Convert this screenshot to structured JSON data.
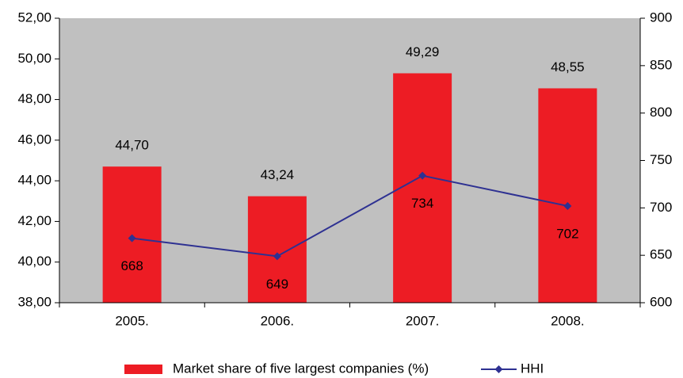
{
  "chart_data": {
    "type": "bar",
    "categories": [
      "2005.",
      "2006.",
      "2007.",
      "2008."
    ],
    "series": [
      {
        "name": "Market share of five largest companies (%)",
        "type": "bar",
        "color": "#ed1c24",
        "values": [
          44.7,
          43.24,
          49.29,
          48.55
        ],
        "value_labels": [
          "44,70",
          "43,24",
          "49,29",
          "48,55"
        ]
      },
      {
        "name": "HHI",
        "type": "line",
        "axis": "y2",
        "color": "#2e3192",
        "values": [
          668,
          649,
          734,
          702
        ]
      }
    ],
    "ylim": [
      38,
      52
    ],
    "yticks": [
      {
        "value": 38,
        "label": "38,00"
      },
      {
        "value": 40,
        "label": "40,00"
      },
      {
        "value": 42,
        "label": "42,00"
      },
      {
        "value": 44,
        "label": "44,00"
      },
      {
        "value": 46,
        "label": "46,00"
      },
      {
        "value": 48,
        "label": "48,00"
      },
      {
        "value": 50,
        "label": "50,00"
      },
      {
        "value": 52,
        "label": "52,00"
      }
    ],
    "y2lim": [
      600,
      900
    ],
    "y2ticks": [
      600,
      650,
      700,
      750,
      800,
      850,
      900
    ],
    "plot_background": "#c0c0c0",
    "legend": "bottom"
  }
}
